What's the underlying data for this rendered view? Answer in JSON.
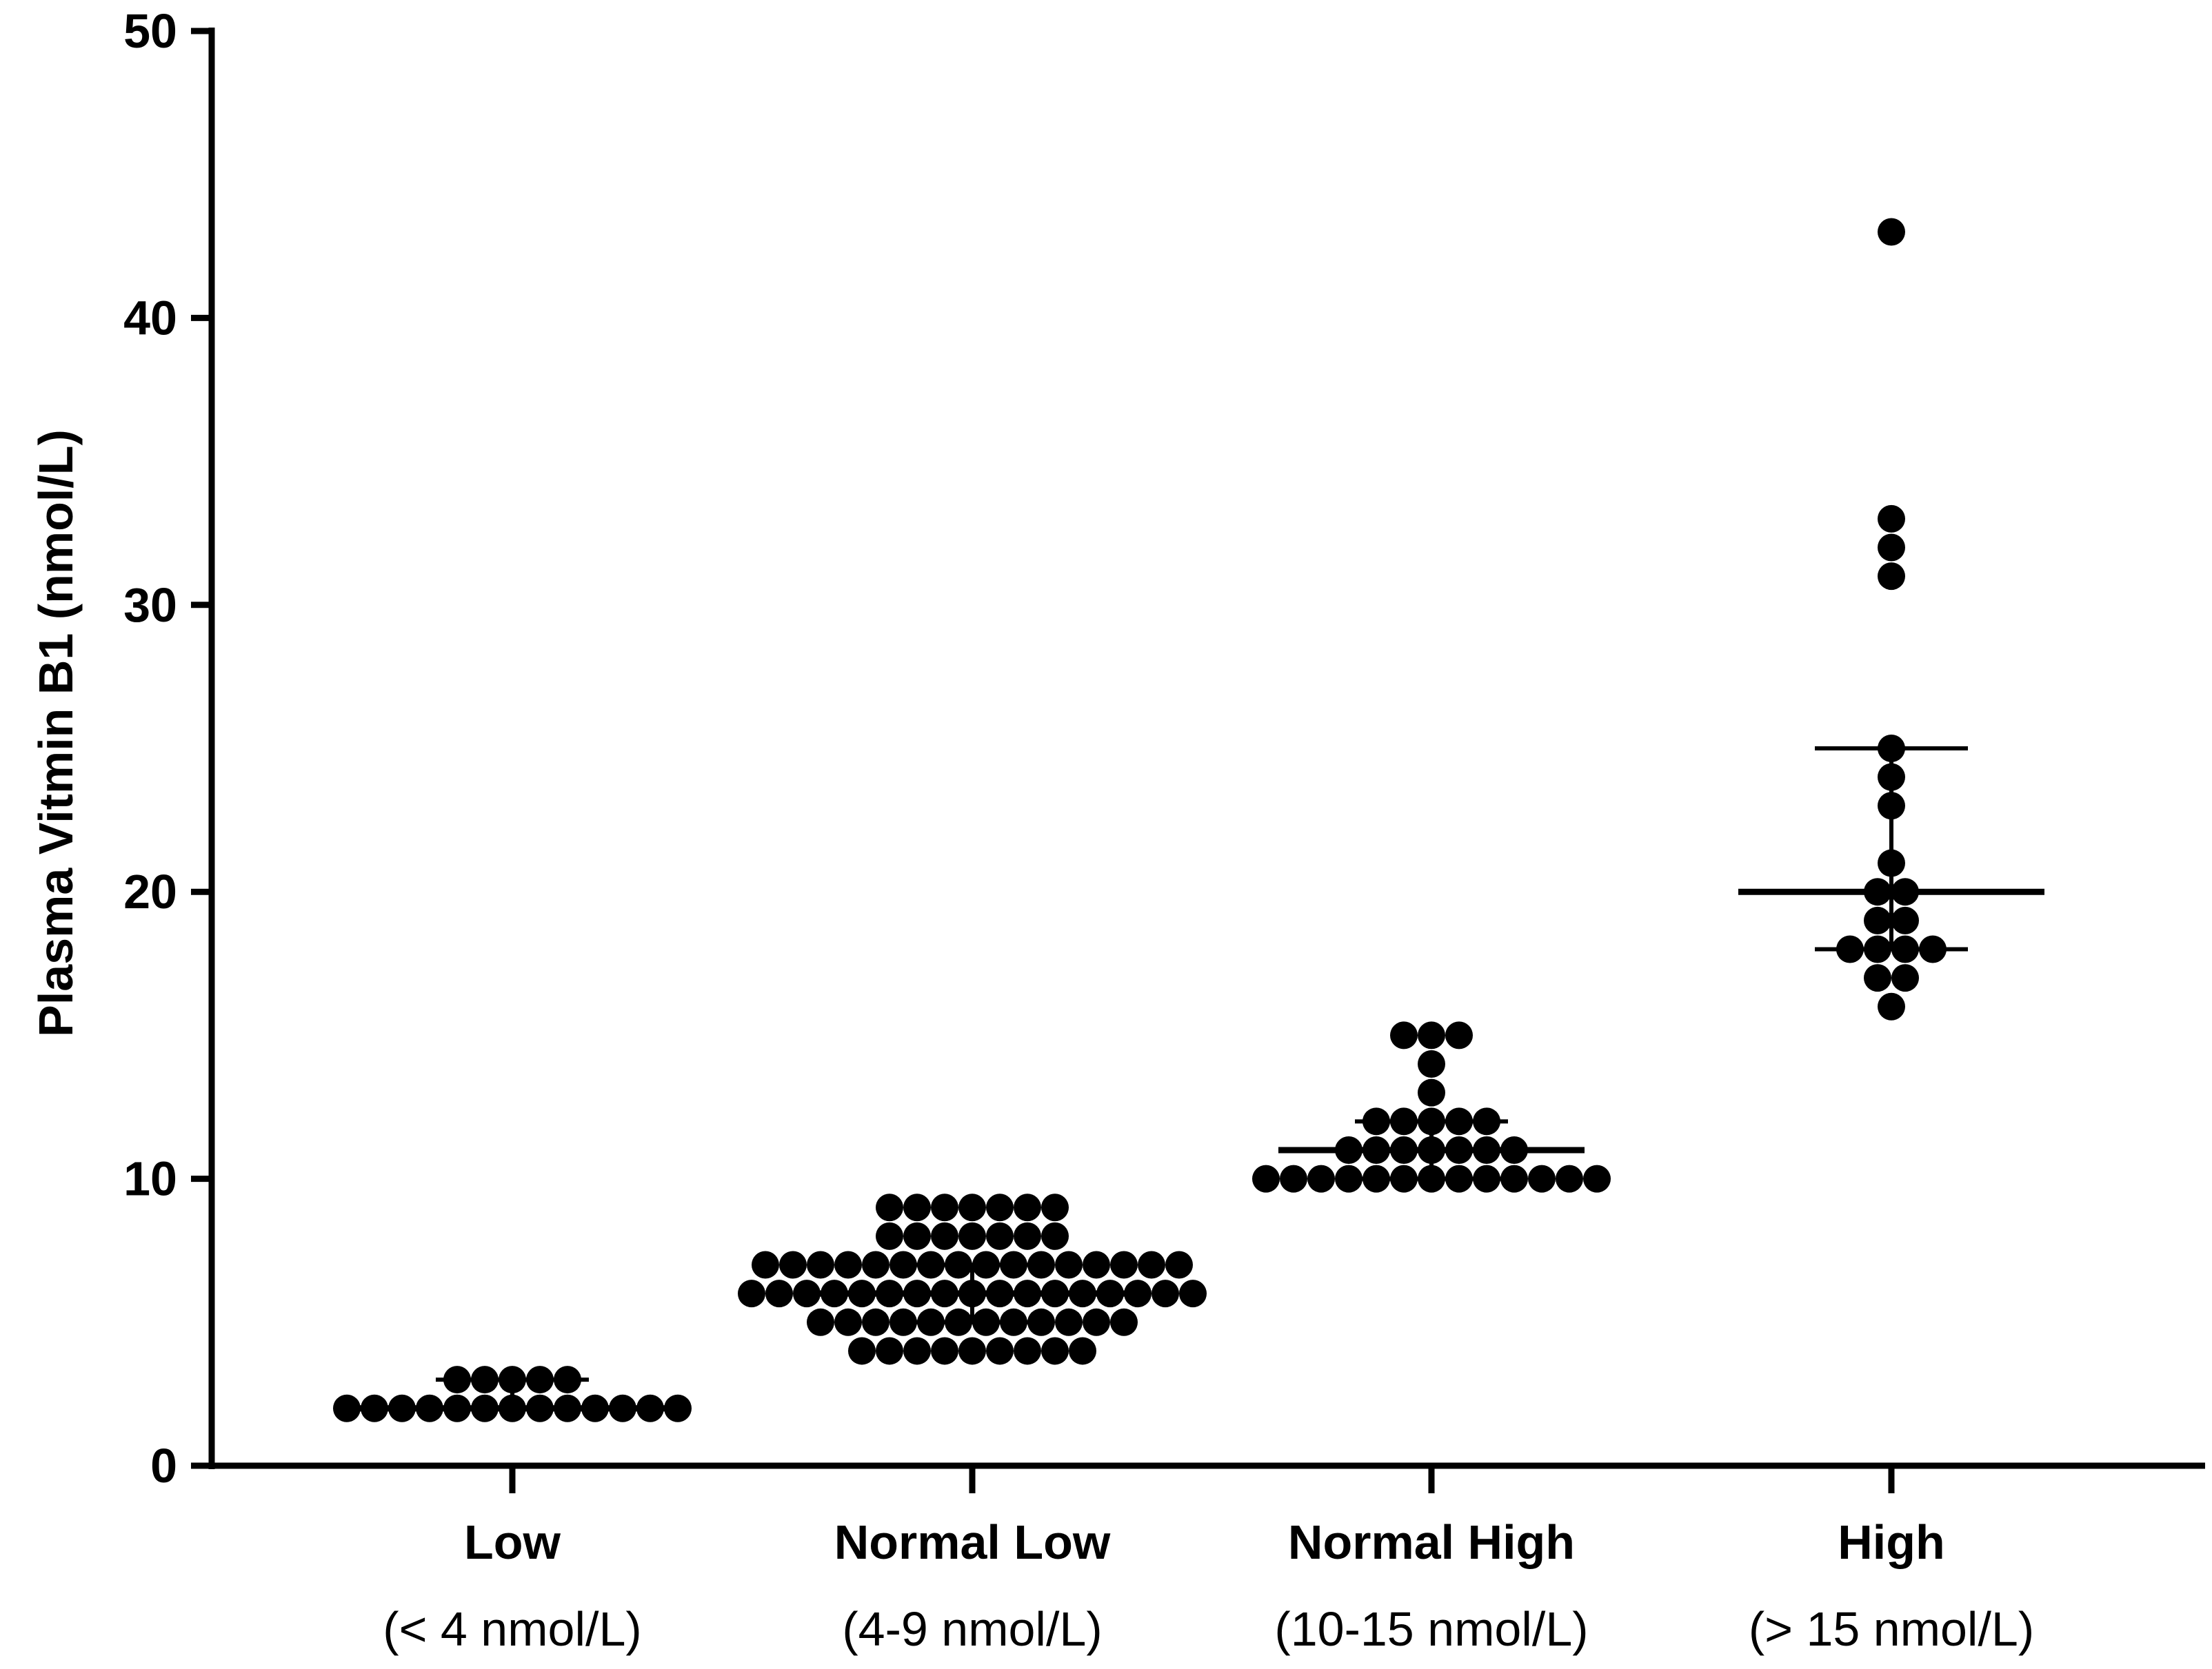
{
  "chart_data": {
    "type": "scatter",
    "ylabel": "Plasma Vitmin B1 (nmol/L)",
    "xlabel": "",
    "ylim": [
      0,
      50
    ],
    "yticks": [
      0,
      10,
      20,
      30,
      40,
      50
    ],
    "grid": false,
    "colors": {
      "axis": "#000000",
      "points": "#000000"
    },
    "categories": [
      {
        "name": "Low",
        "range_label": "(< 4 nmol/L)",
        "summary": {
          "median": 2,
          "q1": 2,
          "q3": 3
        },
        "points": [
          2,
          2,
          2,
          2,
          2,
          2,
          2,
          2,
          2,
          2,
          2,
          2,
          2,
          3,
          3,
          3,
          3,
          3
        ]
      },
      {
        "name": "Normal Low",
        "range_label": "(4-9 nmol/L)",
        "summary": {
          "median": 6,
          "q1": 5,
          "q3": 7
        },
        "points": [
          9,
          9,
          9,
          9,
          9,
          9,
          9,
          8,
          8,
          8,
          8,
          8,
          8,
          8,
          7,
          7,
          7,
          7,
          7,
          7,
          7,
          7,
          7,
          7,
          7,
          7,
          7,
          7,
          7,
          7,
          6,
          6,
          6,
          6,
          6,
          6,
          6,
          6,
          6,
          6,
          6,
          6,
          6,
          6,
          6,
          6,
          6,
          5,
          5,
          5,
          5,
          5,
          5,
          5,
          5,
          5,
          5,
          5,
          5,
          4,
          4,
          4,
          4,
          4,
          4,
          4,
          4,
          4
        ]
      },
      {
        "name": "Normal High",
        "range_label": "(10-15 nmol/L)",
        "summary": {
          "median": 11,
          "q1": 10,
          "q3": 12
        },
        "points": [
          15,
          15,
          15,
          14,
          13,
          12,
          12,
          12,
          12,
          12,
          11,
          11,
          11,
          11,
          11,
          11,
          11,
          10,
          10,
          10,
          10,
          10,
          10,
          10,
          10,
          10,
          10,
          10,
          10,
          10
        ]
      },
      {
        "name": "High",
        "range_label": "(> 15 nmol/L)",
        "summary": {
          "median": 20,
          "q1": 18,
          "q3": 25
        },
        "points": [
          43,
          33,
          32,
          31,
          25,
          24,
          23,
          21,
          20,
          20,
          19,
          19,
          18,
          18,
          18,
          18,
          17,
          17,
          16
        ]
      }
    ]
  }
}
